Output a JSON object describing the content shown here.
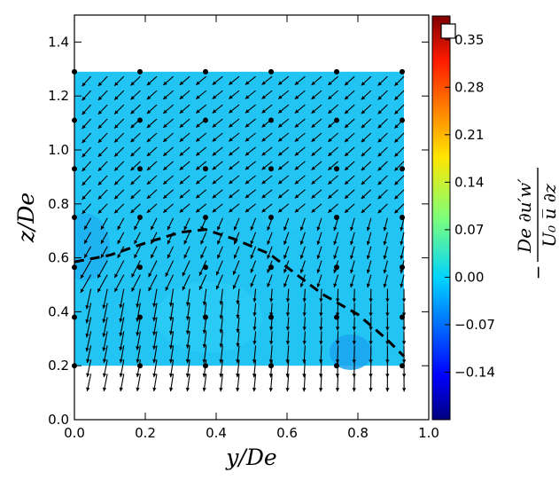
{
  "chart_data": {
    "type": "contour-quiver",
    "xlabel": "y/De",
    "ylabel": "z/De",
    "xlim": [
      0.0,
      1.0
    ],
    "ylim": [
      0.0,
      1.5
    ],
    "x_ticks": [
      "0.0",
      "0.2",
      "0.4",
      "0.6",
      "0.8",
      "1.0"
    ],
    "y_ticks": [
      "0.0",
      "0.2",
      "0.4",
      "0.6",
      "0.8",
      "1.0",
      "1.2",
      "1.4"
    ],
    "contour_region": {
      "y_range": [
        0.0,
        0.93
      ],
      "z_range": [
        0.2,
        1.29
      ],
      "dominant_value": 0.0
    },
    "colorbar": {
      "label_numerator": "De ∂u′w′",
      "label_denominator": "U₀ u̅   ∂z",
      "prefix": "−",
      "range": [
        -0.21,
        0.385
      ],
      "ticks": [
        "−0.14",
        "−0.07",
        "0.00",
        "0.07",
        "0.14",
        "0.21",
        "0.28",
        "0.35"
      ]
    },
    "measurement_points": {
      "y": [
        0.0,
        0.185,
        0.37,
        0.555,
        0.74,
        0.925
      ],
      "z": [
        0.2,
        0.38,
        0.565,
        0.75,
        0.93,
        1.11,
        1.29
      ]
    },
    "dashed_line": {
      "points": [
        [
          0.0,
          0.585
        ],
        [
          0.1,
          0.61
        ],
        [
          0.2,
          0.655
        ],
        [
          0.3,
          0.695
        ],
        [
          0.37,
          0.705
        ],
        [
          0.45,
          0.67
        ],
        [
          0.55,
          0.615
        ],
        [
          0.62,
          0.545
        ],
        [
          0.7,
          0.465
        ],
        [
          0.8,
          0.39
        ],
        [
          0.88,
          0.3
        ],
        [
          0.93,
          0.235
        ]
      ]
    },
    "vector_field": {
      "y_spacing": 0.0465,
      "z_spacing": 0.0525,
      "description": "secondary-flow vectors; downward-left in upper region, strong downward in lower-left"
    }
  }
}
